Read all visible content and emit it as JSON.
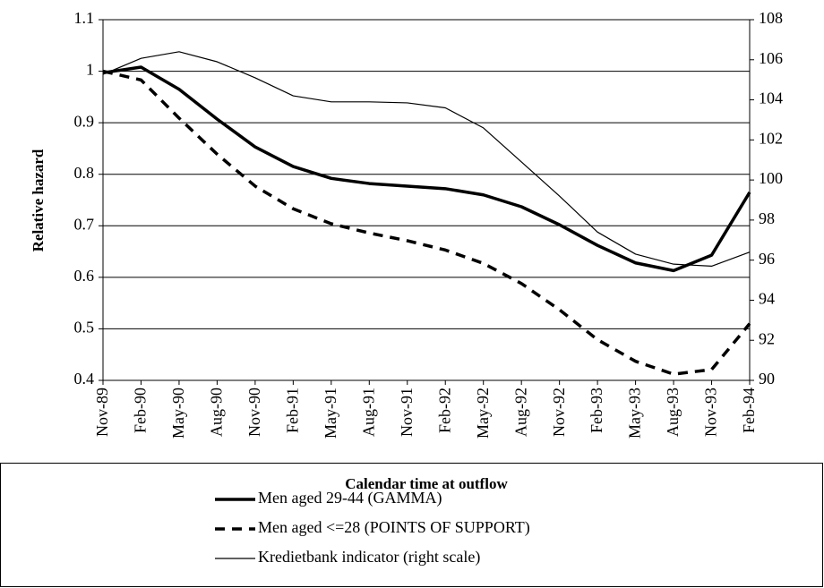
{
  "chart_data": {
    "type": "line",
    "x_label": "Calendar time at outflow",
    "y_label": "Relative hazard",
    "categories": [
      "Nov-89",
      "Feb-90",
      "May-90",
      "Aug-90",
      "Nov-90",
      "Feb-91",
      "May-91",
      "Aug-91",
      "Nov-91",
      "Feb-92",
      "May-92",
      "Aug-92",
      "Nov-92",
      "Feb-93",
      "May-93",
      "Aug-93",
      "Nov-93",
      "Feb-94"
    ],
    "ylim": [
      0.4,
      1.1
    ],
    "yticks": [
      0.4,
      0.5,
      0.6,
      0.7,
      0.8,
      0.9,
      1,
      1.1
    ],
    "y2lim": [
      90,
      108
    ],
    "y2ticks": [
      90,
      92,
      94,
      96,
      98,
      100,
      102,
      104,
      106,
      108
    ],
    "grid": true,
    "series": [
      {
        "name": "Men aged 29-44 (GAMMA)",
        "color": "#000000",
        "line_width": 3.5,
        "dash": "none",
        "values": [
          0.997,
          1.008,
          0.965,
          0.907,
          0.853,
          0.815,
          0.792,
          0.782,
          0.777,
          0.772,
          0.76,
          0.737,
          0.702,
          0.662,
          0.628,
          0.613,
          0.643,
          0.765
        ]
      },
      {
        "name": "Men aged <=28 (POINTS OF SUPPORT)",
        "color": "#000000",
        "line_width": 3.5,
        "dash": "11,8",
        "values": [
          1.0,
          0.983,
          0.909,
          0.839,
          0.777,
          0.733,
          0.704,
          0.686,
          0.671,
          0.653,
          0.627,
          0.588,
          0.537,
          0.479,
          0.437,
          0.412,
          0.421,
          0.51
        ]
      },
      {
        "name": "Kredietbank indicator (right scale)",
        "color": "#000000",
        "line_width": 1.2,
        "dash": "none",
        "axis": "y2",
        "values": [
          105.27,
          106.07,
          106.4,
          105.9,
          105.1,
          104.2,
          103.9,
          103.9,
          103.85,
          103.6,
          102.6,
          100.9,
          99.2,
          97.4,
          96.3,
          95.8,
          95.7,
          96.4
        ]
      }
    ]
  }
}
